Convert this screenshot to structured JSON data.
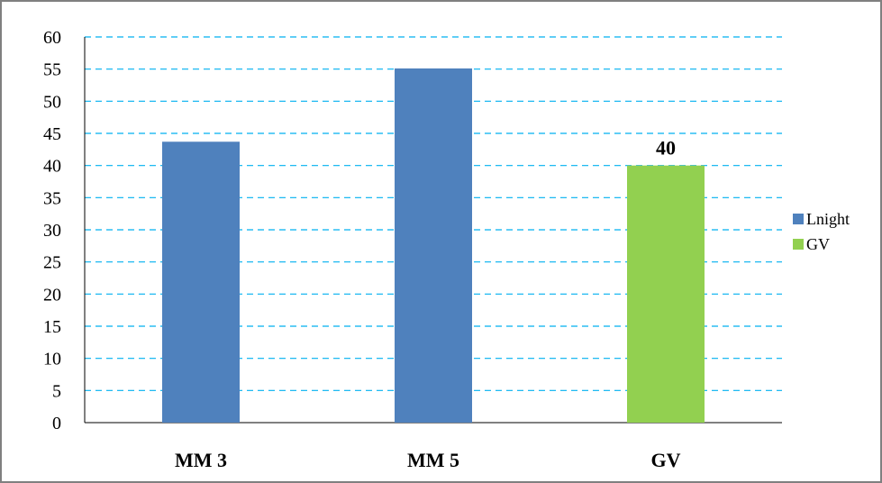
{
  "chart_data": {
    "type": "bar",
    "title": "",
    "xlabel": "",
    "ylabel": "",
    "categories": [
      "MM 3",
      "MM 5",
      "GV"
    ],
    "series": [
      {
        "name": "Lnight",
        "color": "#4f81bd",
        "values": [
          43.7,
          55.1,
          null
        ]
      },
      {
        "name": "GV",
        "color": "#92d050",
        "values": [
          null,
          null,
          40
        ],
        "data_labels": [
          "",
          "",
          "40"
        ]
      }
    ],
    "ylim": [
      0,
      60
    ],
    "yticks": [
      0,
      5,
      10,
      15,
      20,
      25,
      30,
      35,
      40,
      45,
      50,
      55,
      60
    ],
    "grid": true,
    "grid_style": "dashed",
    "grid_color": "#00b0f0",
    "legend_position": "right"
  }
}
